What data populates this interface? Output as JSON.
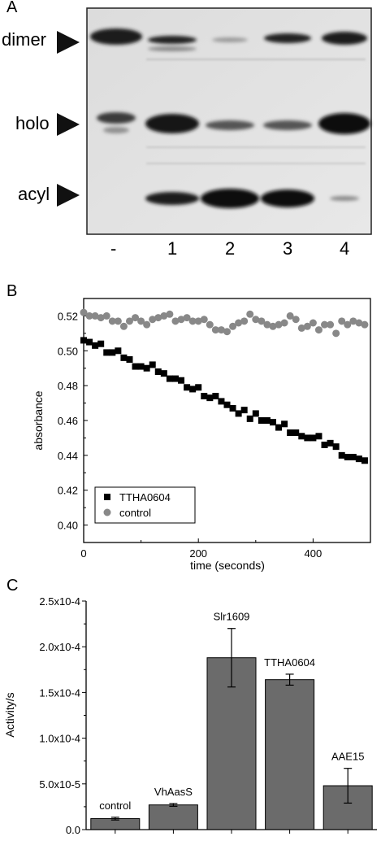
{
  "panel_a": {
    "letter": "A",
    "band_labels": [
      "dimer",
      "holo",
      "acyl"
    ],
    "lane_labels": [
      "-",
      "1",
      "2",
      "3",
      "4"
    ]
  },
  "panel_b": {
    "letter": "B"
  },
  "panel_c": {
    "letter": "C"
  },
  "chart_data": [
    {
      "type": "scatter",
      "xlabel": "time (seconds)",
      "ylabel": "absorbance",
      "xlim": [
        0,
        500
      ],
      "ylim": [
        0.39,
        0.53
      ],
      "x_ticks": [
        "0",
        "200",
        "400"
      ],
      "y_ticks": [
        "0.40",
        "0.42",
        "0.44",
        "0.46",
        "0.48",
        "0.50",
        "0.52"
      ],
      "legend_position": "bottom-left",
      "series": [
        {
          "name": "TTHA0604",
          "marker": "square",
          "color": "#000000",
          "x": [
            0,
            10,
            20,
            30,
            40,
            50,
            60,
            70,
            80,
            90,
            100,
            110,
            120,
            130,
            140,
            150,
            160,
            170,
            180,
            190,
            200,
            210,
            220,
            230,
            240,
            250,
            260,
            270,
            280,
            290,
            300,
            310,
            320,
            330,
            340,
            350,
            360,
            370,
            380,
            390,
            400,
            410,
            420,
            430,
            440,
            450,
            460,
            470,
            480,
            490
          ],
          "y": [
            0.506,
            0.505,
            0.503,
            0.504,
            0.499,
            0.499,
            0.5,
            0.496,
            0.495,
            0.491,
            0.491,
            0.49,
            0.492,
            0.488,
            0.487,
            0.484,
            0.484,
            0.483,
            0.479,
            0.478,
            0.479,
            0.474,
            0.473,
            0.474,
            0.471,
            0.469,
            0.467,
            0.464,
            0.466,
            0.461,
            0.464,
            0.46,
            0.46,
            0.459,
            0.456,
            0.458,
            0.453,
            0.453,
            0.451,
            0.45,
            0.45,
            0.451,
            0.446,
            0.447,
            0.445,
            0.44,
            0.439,
            0.439,
            0.438,
            0.437
          ]
        },
        {
          "name": "control",
          "marker": "circle",
          "color": "#888888",
          "x": [
            0,
            10,
            20,
            30,
            40,
            50,
            60,
            70,
            80,
            90,
            100,
            110,
            120,
            130,
            140,
            150,
            160,
            170,
            180,
            190,
            200,
            210,
            220,
            230,
            240,
            250,
            260,
            270,
            280,
            290,
            300,
            310,
            320,
            330,
            340,
            350,
            360,
            370,
            380,
            390,
            400,
            410,
            420,
            430,
            440,
            450,
            460,
            470,
            480,
            490
          ],
          "y": [
            0.522,
            0.52,
            0.52,
            0.519,
            0.52,
            0.517,
            0.517,
            0.514,
            0.517,
            0.519,
            0.517,
            0.515,
            0.518,
            0.519,
            0.52,
            0.521,
            0.517,
            0.518,
            0.519,
            0.517,
            0.517,
            0.518,
            0.515,
            0.512,
            0.512,
            0.511,
            0.514,
            0.516,
            0.517,
            0.521,
            0.518,
            0.517,
            0.515,
            0.514,
            0.515,
            0.516,
            0.52,
            0.518,
            0.513,
            0.514,
            0.516,
            0.512,
            0.515,
            0.515,
            0.51,
            0.517,
            0.515,
            0.517,
            0.516,
            0.515
          ]
        }
      ]
    },
    {
      "type": "bar",
      "ylabel": "Activity/s",
      "ylim": [
        0,
        0.00025
      ],
      "y_ticks": [
        "0.0",
        "5.0x10-5",
        "1.0x10-4",
        "1.5x10-4",
        "2.0x10-4",
        "2.5x10-4"
      ],
      "categories": [
        "control",
        "VhAasS",
        "Slr1609",
        "TTHA0604",
        "AAE15"
      ],
      "values": [
        1.2e-05,
        2.7e-05,
        0.000188,
        0.000164,
        4.8e-05
      ],
      "errors": [
        1.5e-06,
        1.5e-06,
        3.2e-05,
        6e-06,
        1.9e-05
      ],
      "bar_color": "#6b6b6b"
    }
  ]
}
